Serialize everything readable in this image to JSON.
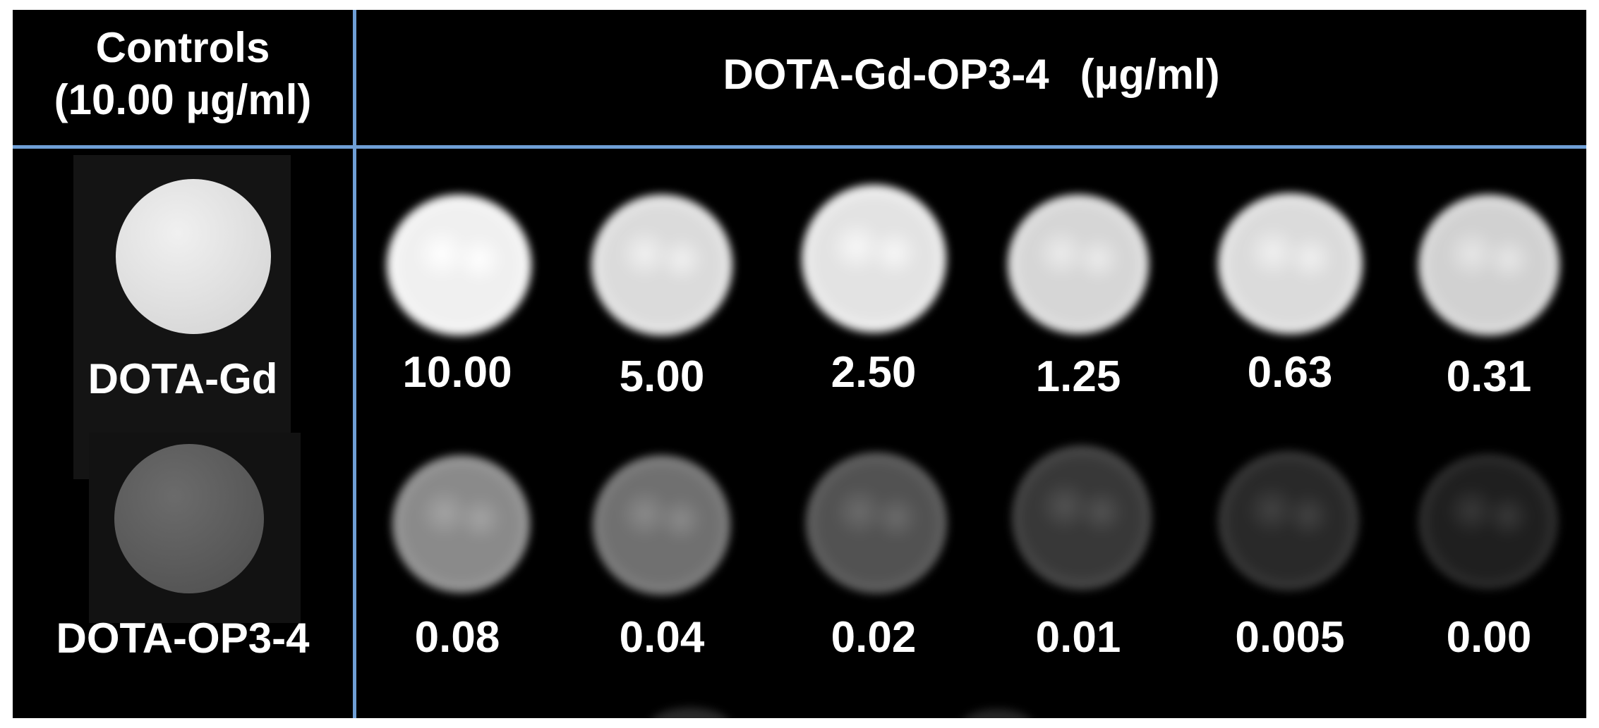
{
  "header": {
    "controls_title": "Controls",
    "controls_concentration": "(10.00 µg/ml)",
    "series_title": "DOTA-Gd-OP3-4",
    "series_unit": "(µg/ml)"
  },
  "controls": [
    {
      "label": "DOTA-Gd",
      "intensity": 0.88
    },
    {
      "label": "DOTA-OP3-4",
      "intensity": 0.36
    }
  ],
  "rows": [
    {
      "samples": [
        {
          "concentration": "10.00",
          "intensity": 1.0
        },
        {
          "concentration": "5.00",
          "intensity": 0.92
        },
        {
          "concentration": "2.50",
          "intensity": 0.95
        },
        {
          "concentration": "1.25",
          "intensity": 0.9
        },
        {
          "concentration": "0.63",
          "intensity": 0.92
        },
        {
          "concentration": "0.31",
          "intensity": 0.88
        }
      ]
    },
    {
      "samples": [
        {
          "concentration": "0.08",
          "intensity": 0.62
        },
        {
          "concentration": "0.04",
          "intensity": 0.52
        },
        {
          "concentration": "0.02",
          "intensity": 0.4
        },
        {
          "concentration": "0.01",
          "intensity": 0.3
        },
        {
          "concentration": "0.005",
          "intensity": 0.24
        },
        {
          "concentration": "0.00",
          "intensity": 0.2
        }
      ]
    }
  ],
  "colors": {
    "background": "#000000",
    "divider": "#6f9fd6",
    "text": "#ffffff"
  }
}
